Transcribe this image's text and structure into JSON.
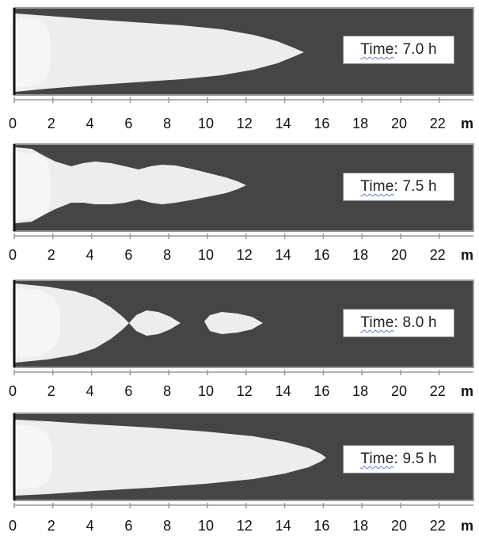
{
  "colors": {
    "channel": "#454545",
    "plume_light": "#ededed",
    "core": "#f6f6f6",
    "frame": "#999999",
    "inlet": "#111111"
  },
  "axis": {
    "ticks": [
      "0",
      "2",
      "4",
      "6",
      "8",
      "10",
      "12",
      "14",
      "16",
      "18",
      "20",
      "22"
    ],
    "tick_values_m": [
      0,
      2,
      4,
      6,
      8,
      10,
      12,
      14,
      16,
      18,
      20,
      22
    ],
    "unit": "m",
    "range_m": [
      0,
      23.3
    ]
  },
  "panels": [
    {
      "time_word": "Time",
      "time_value": ": 7.0 h",
      "tip_m": 14.9
    },
    {
      "time_word": "Time",
      "time_value": ": 7.5 h",
      "tip_m": 11.9,
      "front_m": 1.9
    },
    {
      "time_word": "Time",
      "time_value": ": 8.0 h",
      "neck_m": 5.9,
      "blobs_m": [
        [
          5.9,
          8.5
        ],
        [
          9.7,
          12.8
        ]
      ]
    },
    {
      "time_word": "Time",
      "time_value": ": 9.5 h",
      "tip_m": 16.2
    }
  ]
}
